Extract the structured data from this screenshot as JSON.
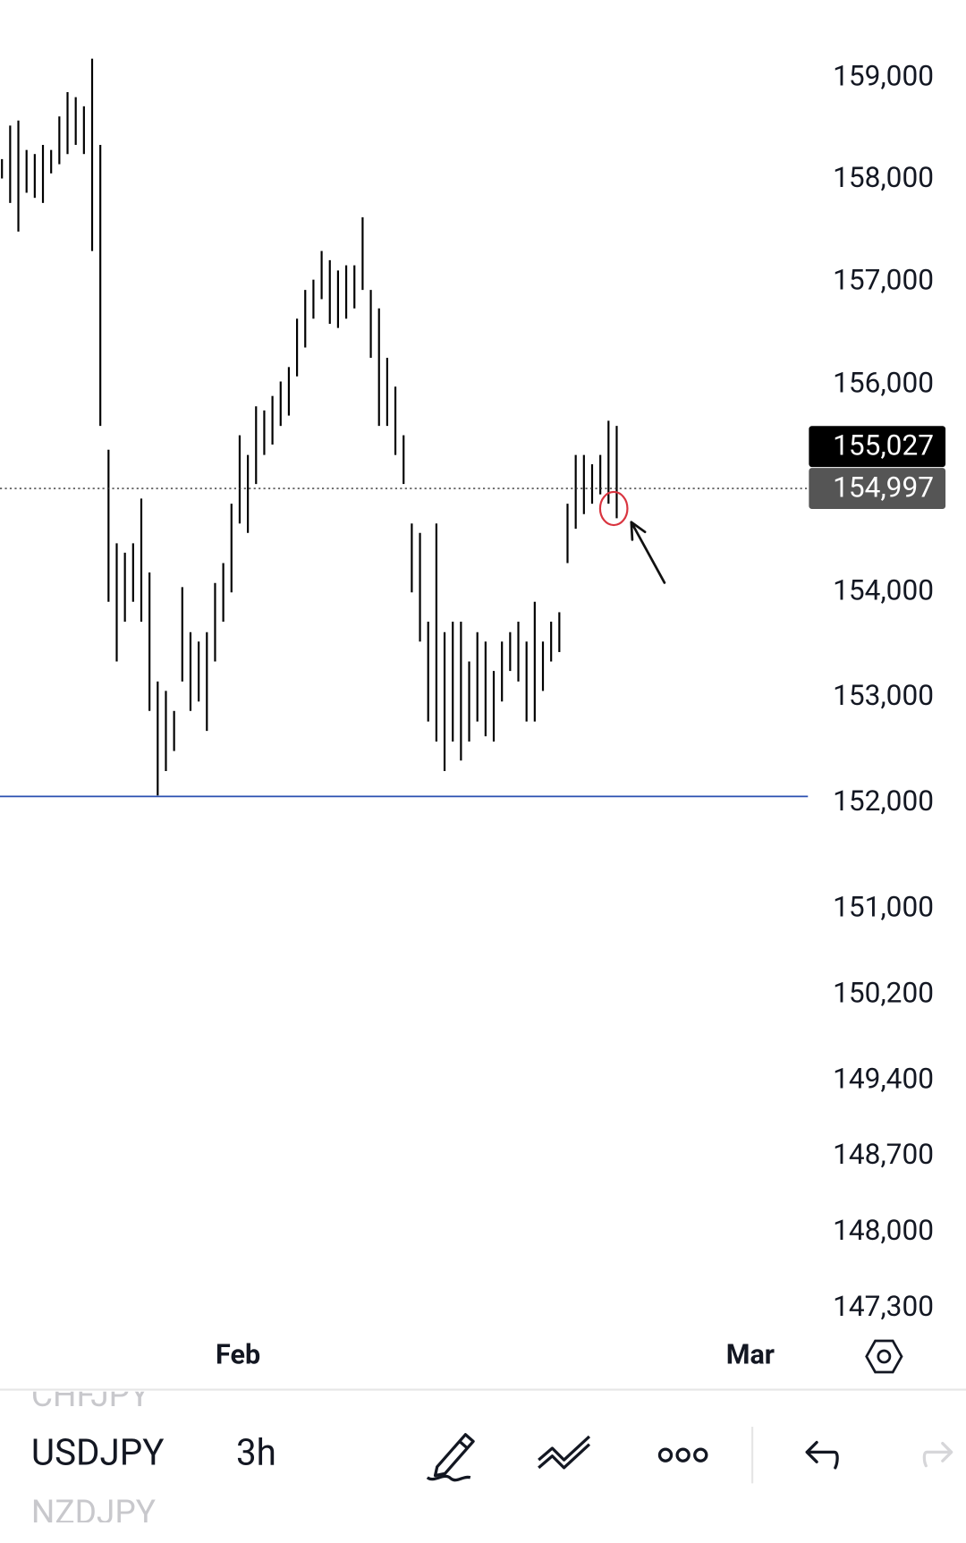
{
  "chart_data": {
    "type": "hl_bars",
    "log": true,
    "x": [
      0,
      1,
      2,
      3,
      4,
      5,
      6,
      7,
      8,
      9,
      10,
      11,
      12,
      13,
      14,
      15,
      16,
      17,
      18,
      19,
      20,
      21,
      22,
      23,
      24,
      25,
      26,
      27,
      28,
      29,
      30,
      31,
      32,
      33,
      34,
      35,
      36,
      37,
      38,
      39,
      40,
      41,
      42,
      43,
      44,
      45,
      46,
      47,
      48,
      49,
      50,
      51,
      52,
      53,
      54,
      55,
      56,
      57,
      58,
      59,
      60,
      61,
      62,
      63,
      64,
      65,
      66,
      67,
      68,
      69,
      70,
      71,
      72,
      73,
      74,
      75
    ],
    "high": [
      158.2,
      158.53,
      158.58,
      158.29,
      158.25,
      158.34,
      158.29,
      158.62,
      158.86,
      158.81,
      158.72,
      159.19,
      158.34,
      155.37,
      154.47,
      154.38,
      154.47,
      154.9,
      154.19,
      153.15,
      153.06,
      152.87,
      154.05,
      153.62,
      153.53,
      153.62,
      154.09,
      154.28,
      154.85,
      155.51,
      155.32,
      155.79,
      155.75,
      155.89,
      156.03,
      156.17,
      156.64,
      156.92,
      157.02,
      157.3,
      157.21,
      157.11,
      157.16,
      157.16,
      157.63,
      156.92,
      156.74,
      156.26,
      155.98,
      155.51,
      154.66,
      154.57,
      153.72,
      154.66,
      153.62,
      153.72,
      153.72,
      153.34,
      153.62,
      153.53,
      153.25,
      153.53,
      153.62,
      153.72,
      153.53,
      153.91,
      153.53,
      153.72,
      153.81,
      154.85,
      155.32,
      155.32,
      155.23,
      155.32,
      155.65,
      155.6
    ],
    "low": [
      158.01,
      157.77,
      157.49,
      157.87,
      157.82,
      157.77,
      158.06,
      158.15,
      158.25,
      158.34,
      158.25,
      157.3,
      155.6,
      153.91,
      153.34,
      153.72,
      153.91,
      153.72,
      152.87,
      152.07,
      152.3,
      152.49,
      153.15,
      152.87,
      152.96,
      152.68,
      153.34,
      153.72,
      154.0,
      154.66,
      154.57,
      155.04,
      155.32,
      155.42,
      155.6,
      155.7,
      156.08,
      156.36,
      156.64,
      156.83,
      156.59,
      156.55,
      156.64,
      156.74,
      156.92,
      156.26,
      155.6,
      155.6,
      155.32,
      155.04,
      154.0,
      153.53,
      152.77,
      152.58,
      152.3,
      152.58,
      152.4,
      152.58,
      152.77,
      152.63,
      152.58,
      152.96,
      153.25,
      153.15,
      152.77,
      152.77,
      153.06,
      153.34,
      153.43,
      154.28,
      154.61,
      154.75,
      154.85,
      154.94,
      154.85,
      154.71
    ],
    "color": "#000000",
    "xlim": [
      -0.24,
      98.33
    ],
    "ylim": [
      147.04,
      159.77
    ],
    "xticks": [
      {
        "value": 28.8,
        "label": "Feb"
      },
      {
        "value": 91.3,
        "label": "Mar"
      }
    ],
    "yticks": [
      {
        "value": 159,
        "label": "159,000"
      },
      {
        "value": 158,
        "label": "158,000"
      },
      {
        "value": 157,
        "label": "157,000"
      },
      {
        "value": 156,
        "label": "156,000"
      },
      {
        "value": 154,
        "label": "154,000"
      },
      {
        "value": 153,
        "label": "153,000"
      },
      {
        "value": 152,
        "label": "152,000"
      },
      {
        "value": 151,
        "label": "151,000"
      },
      {
        "value": 150.2,
        "label": "150,200"
      },
      {
        "value": 149.4,
        "label": "149,400"
      },
      {
        "value": 148.7,
        "label": "148,700"
      },
      {
        "value": 148,
        "label": "148,000"
      },
      {
        "value": 147.3,
        "label": "147,300"
      }
    ],
    "price_labels": [
      {
        "value": 155.027,
        "label": "155,027"
      },
      {
        "value": 154.997,
        "label": "154,997"
      }
    ],
    "horizontal_line": {
      "value": 152.06,
      "color": "#2a4fb0"
    }
  },
  "toolbar": {
    "symbol_above": "CHFJPY",
    "symbol": "USDJPY",
    "interval": "3h",
    "symbol_below": "NZDJPY"
  }
}
